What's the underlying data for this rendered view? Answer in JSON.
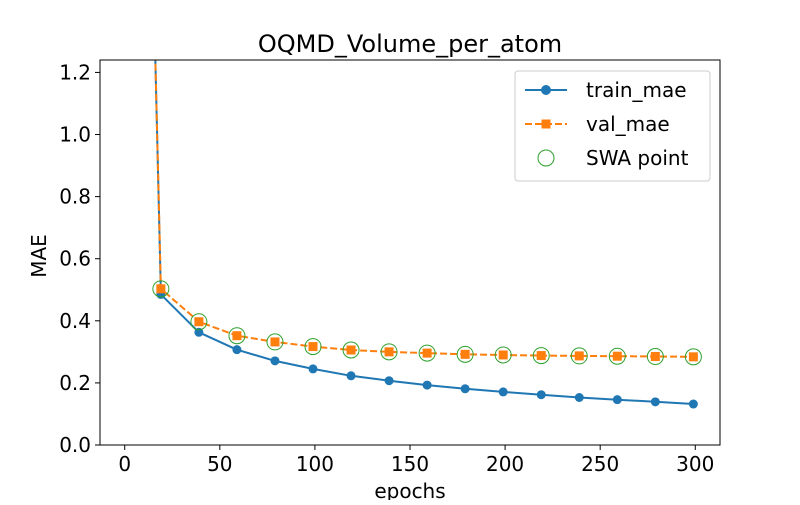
{
  "chart_data": {
    "type": "line",
    "title": "OQMD_Volume_per_atom",
    "xlabel": "epochs",
    "ylabel": "MAE",
    "xlim": [
      -13,
      313
    ],
    "ylim": [
      0.0,
      1.24
    ],
    "xticks": [
      0,
      50,
      100,
      150,
      200,
      250,
      300
    ],
    "xtick_labels": [
      "0",
      "50",
      "100",
      "150",
      "200",
      "250",
      "300"
    ],
    "yticks": [
      0.0,
      0.2,
      0.4,
      0.6,
      0.8,
      1.0,
      1.2
    ],
    "ytick_labels": [
      "0.0",
      "0.2",
      "0.4",
      "0.6",
      "0.8",
      "1.0",
      "1.2"
    ],
    "grid": false,
    "legend_position": "top-right",
    "series": [
      {
        "name": "train_mae",
        "color": "#1f77b4",
        "marker": "circle",
        "linestyle": "solid",
        "x": [
          16,
          19,
          39,
          59,
          79,
          99,
          119,
          139,
          159,
          179,
          199,
          219,
          239,
          259,
          279,
          299
        ],
        "y": [
          1.26,
          0.485,
          0.363,
          0.307,
          0.271,
          0.245,
          0.223,
          0.207,
          0.193,
          0.181,
          0.171,
          0.162,
          0.153,
          0.146,
          0.139,
          0.132
        ],
        "marker_from_index": 1
      },
      {
        "name": "val_mae",
        "color": "#ff7f0e",
        "marker": "square",
        "linestyle": "dashed",
        "x": [
          16,
          19,
          39,
          59,
          79,
          99,
          119,
          139,
          159,
          179,
          199,
          219,
          239,
          259,
          279,
          299
        ],
        "y": [
          1.26,
          0.503,
          0.397,
          0.352,
          0.332,
          0.317,
          0.306,
          0.3,
          0.296,
          0.292,
          0.29,
          0.288,
          0.287,
          0.286,
          0.285,
          0.284
        ],
        "marker_from_index": 1
      },
      {
        "name": "SWA point",
        "color": "#2ca02c",
        "marker": "open-circle",
        "linestyle": "none",
        "x": [
          19,
          39,
          59,
          79,
          99,
          119,
          139,
          159,
          179,
          199,
          219,
          239,
          259,
          279,
          299
        ],
        "y": [
          0.503,
          0.397,
          0.352,
          0.332,
          0.317,
          0.306,
          0.3,
          0.296,
          0.292,
          0.29,
          0.288,
          0.287,
          0.286,
          0.285,
          0.284
        ]
      }
    ]
  }
}
